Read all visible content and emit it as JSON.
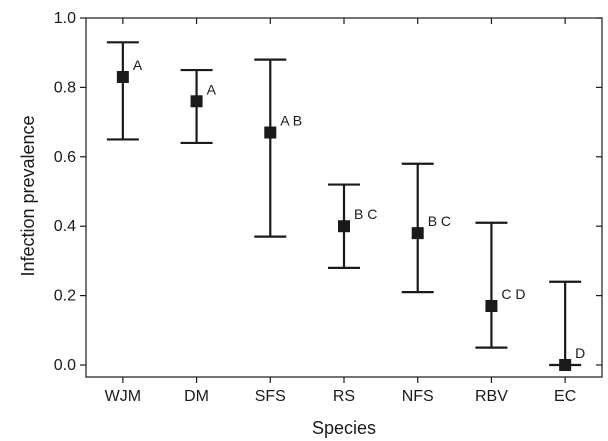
{
  "chart_data": {
    "type": "scatter",
    "xlabel": "Species",
    "ylabel": "Infection prevalence",
    "ylim": [
      0.0,
      1.0
    ],
    "yticks": [
      "0.0",
      "0.2",
      "0.4",
      "0.6",
      "0.8",
      "1.0"
    ],
    "grid": false,
    "categories": [
      "WJM",
      "DM",
      "SFS",
      "RS",
      "NFS",
      "RBV",
      "EC"
    ],
    "points": [
      {
        "category": "WJM",
        "value": 0.83,
        "lower": 0.65,
        "upper": 0.93,
        "group": "A"
      },
      {
        "category": "DM",
        "value": 0.76,
        "lower": 0.64,
        "upper": 0.85,
        "group": "A"
      },
      {
        "category": "SFS",
        "value": 0.67,
        "lower": 0.37,
        "upper": 0.88,
        "group": "A B"
      },
      {
        "category": "RS",
        "value": 0.4,
        "lower": 0.28,
        "upper": 0.52,
        "group": "B C"
      },
      {
        "category": "NFS",
        "value": 0.38,
        "lower": 0.21,
        "upper": 0.58,
        "group": "B C"
      },
      {
        "category": "RBV",
        "value": 0.17,
        "lower": 0.05,
        "upper": 0.41,
        "group": "C D"
      },
      {
        "category": "EC",
        "value": 0.0,
        "lower": 0.0,
        "upper": 0.24,
        "group": "D"
      }
    ],
    "colors": {
      "marker": "#1a1a1a",
      "axis": "#1a1a1a"
    }
  }
}
